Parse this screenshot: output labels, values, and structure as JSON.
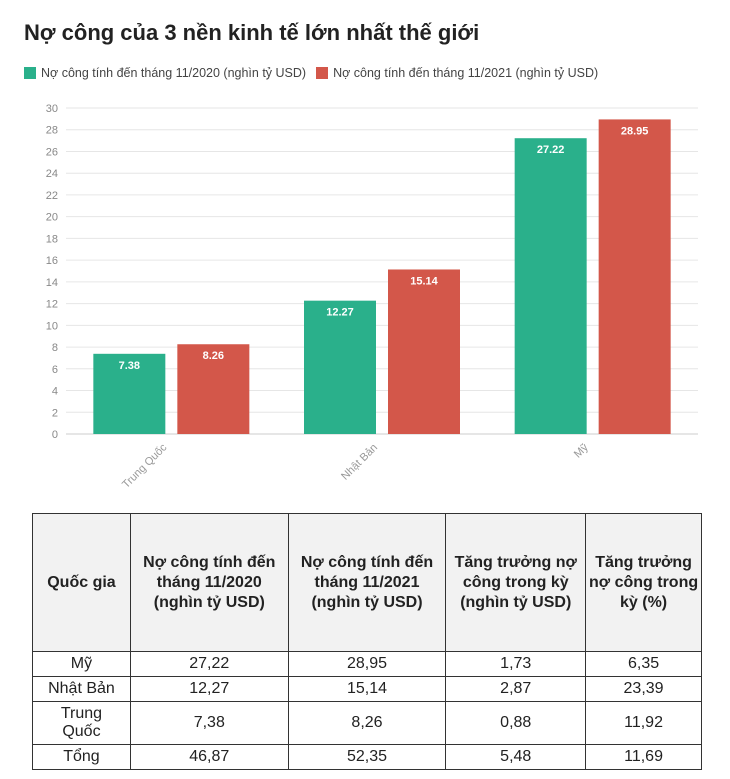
{
  "title": "Nợ công của 3 nền kinh tế lớn nhất thế giới",
  "colors": {
    "series1": "#2ab08b",
    "series2": "#d3574a"
  },
  "chart_data": {
    "type": "bar",
    "categories": [
      "Trung Quốc",
      "Nhật Bản",
      "Mỹ"
    ],
    "series": [
      {
        "name": "Nợ công tính đến tháng 11/2020 (nghìn tỷ USD)",
        "values": [
          7.38,
          12.27,
          27.22
        ],
        "labels": [
          "7.38",
          "12.27",
          "27.22"
        ]
      },
      {
        "name": "Nợ công tính đến tháng 11/2021 (nghìn tỷ USD)",
        "values": [
          8.26,
          15.14,
          28.95
        ],
        "labels": [
          "8.26",
          "15.14",
          "28.95"
        ]
      }
    ],
    "ylim": [
      0,
      30
    ],
    "yticks": [
      "0",
      "2",
      "4",
      "6",
      "8",
      "10",
      "12",
      "14",
      "16",
      "18",
      "20",
      "22",
      "24",
      "26",
      "28",
      "30"
    ],
    "grid": true,
    "legend": "top-left"
  },
  "table": {
    "headers": [
      "Quốc gia",
      "Nợ công tính đến tháng 11/2020 (nghìn tỷ USD)",
      "Nợ công tính đến tháng 11/2021 (nghìn tỷ USD)",
      "Tăng trưởng nợ công trong kỳ (nghìn tỷ USD)",
      "Tăng trưởng nợ công trong kỳ (%)"
    ],
    "rows": [
      [
        "Mỹ",
        "27,22",
        "28,95",
        "1,73",
        "6,35"
      ],
      [
        "Nhật Bản",
        "12,27",
        "15,14",
        "2,87",
        "23,39"
      ],
      [
        "Trung Quốc",
        "7,38",
        "8,26",
        "0,88",
        "11,92"
      ],
      [
        "Tổng",
        "46,87",
        "52,35",
        "5,48",
        "11,69"
      ]
    ]
  }
}
